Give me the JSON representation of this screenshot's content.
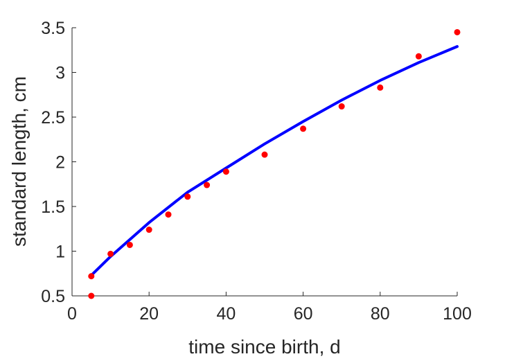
{
  "chart_data": {
    "type": "scatter",
    "title": "",
    "xlabel": "time since birth, d",
    "ylabel": "standard length, cm",
    "xlim": [
      0,
      100
    ],
    "ylim": [
      0.5,
      3.5
    ],
    "xticks": [
      "0",
      "20",
      "40",
      "60",
      "80",
      "100"
    ],
    "yticks": [
      "0.5",
      "1",
      "1.5",
      "2",
      "2.5",
      "3",
      "3.5"
    ],
    "grid": false,
    "legend": "none",
    "series": [
      {
        "kind": "points",
        "color": "#ff0000",
        "x": [
          5,
          5,
          10,
          15,
          20,
          25,
          30,
          35,
          40,
          50,
          60,
          70,
          80,
          90,
          100
        ],
        "y": [
          0.5,
          0.72,
          0.97,
          1.07,
          1.24,
          1.41,
          1.61,
          1.74,
          1.89,
          2.08,
          2.37,
          2.62,
          2.83,
          3.18,
          3.45
        ]
      },
      {
        "kind": "line",
        "color": "#0000ff",
        "x": [
          5,
          10,
          20,
          30,
          40,
          50,
          60,
          70,
          80,
          90,
          100
        ],
        "y": [
          0.73,
          0.94,
          1.32,
          1.66,
          1.93,
          2.2,
          2.45,
          2.69,
          2.91,
          3.11,
          3.29
        ]
      }
    ]
  }
}
